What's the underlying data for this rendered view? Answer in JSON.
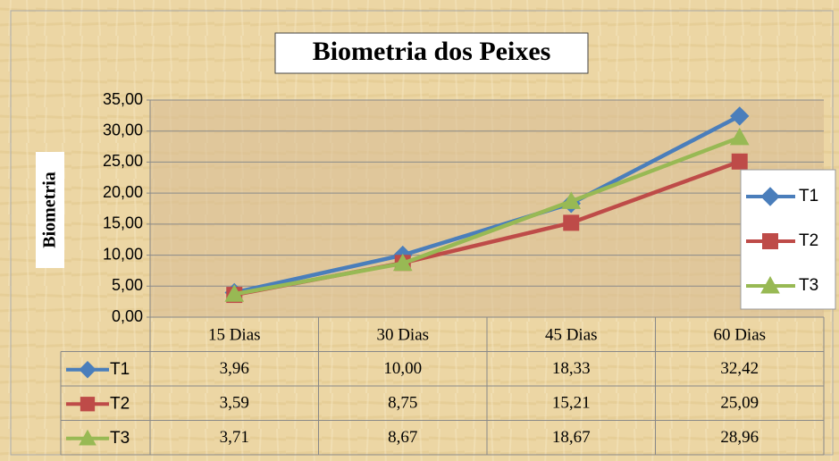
{
  "chart_data": {
    "type": "line",
    "title": "Biometria dos Peixes",
    "y_label": "Biometria",
    "categories": [
      "15  Dias",
      "30 Dias",
      "45 Dias",
      "60 Dias"
    ],
    "series": [
      {
        "name": "T1",
        "color": "#4a7ebb",
        "marker": "diamond",
        "values": [
          3.96,
          10.0,
          18.33,
          32.42
        ],
        "value_labels": [
          "3,96",
          "10,00",
          "18,33",
          "32,42"
        ]
      },
      {
        "name": "T2",
        "color": "#be4b48",
        "marker": "square",
        "values": [
          3.59,
          8.75,
          15.21,
          25.09
        ],
        "value_labels": [
          "3,59",
          "8,75",
          "15,21",
          "25,09"
        ]
      },
      {
        "name": "T3",
        "color": "#98b954",
        "marker": "triangle",
        "values": [
          3.71,
          8.67,
          18.67,
          28.96
        ],
        "value_labels": [
          "3,71",
          "8,67",
          "18,67",
          "28,96"
        ]
      }
    ],
    "ylim": [
      0,
      35
    ],
    "yticks": [
      {
        "value": 0,
        "label": "0,00"
      },
      {
        "value": 5,
        "label": "5,00"
      },
      {
        "value": 10,
        "label": "10,00"
      },
      {
        "value": 15,
        "label": "15,00"
      },
      {
        "value": 20,
        "label": "20,00"
      },
      {
        "value": 25,
        "label": "25,00"
      },
      {
        "value": 30,
        "label": "30,00"
      },
      {
        "value": 35,
        "label": "35,00"
      }
    ],
    "grid": true,
    "legend": "right",
    "data_table": true
  }
}
